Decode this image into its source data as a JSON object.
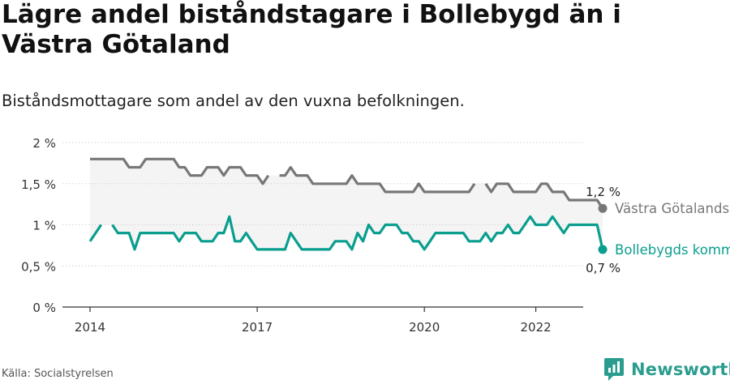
{
  "title": "Lägre andel biståndstagare i Bollebygd än i Västra Götaland",
  "subtitle": "Biståndsmottagare som andel av den vuxna befolkningen.",
  "source": "Källa: Socialstyrelsen",
  "brand": {
    "name": "Newsworthy",
    "icon": "newsworthy-logo-icon",
    "color": "#2a9d8f"
  },
  "chart_data": {
    "type": "line",
    "title": "",
    "xlabel": "",
    "ylabel": "",
    "ylim": [
      0,
      2
    ],
    "xlim": [
      2013.5,
      2022.6
    ],
    "x_ticks": [
      2014,
      2017,
      2020,
      2022
    ],
    "x_tick_labels": [
      "2014",
      "2017",
      "2020",
      "2022"
    ],
    "y_ticks": [
      0,
      0.5,
      1,
      1.5,
      2
    ],
    "y_tick_labels": [
      "0 %",
      "0,5 %",
      "1 %",
      "1,5 %",
      "2 %"
    ],
    "grid": "horizontal",
    "band_color": "#f4f4f4",
    "series": [
      {
        "name": "Västra Götalands län",
        "color": "#777777",
        "end_label": "1,2 %",
        "points": [
          [
            2014.0,
            1.8
          ],
          [
            2014.1,
            1.8
          ],
          [
            2014.2,
            1.8
          ],
          [
            2014.3,
            1.8
          ],
          [
            2014.4,
            1.8
          ],
          [
            2014.5,
            1.8
          ],
          [
            2014.6,
            1.8
          ],
          [
            2014.7,
            1.7
          ],
          [
            2014.8,
            1.7
          ],
          [
            2014.9,
            1.7
          ],
          [
            2015.0,
            1.8
          ],
          [
            2015.1,
            1.8
          ],
          [
            2015.2,
            1.8
          ],
          [
            2015.3,
            1.8
          ],
          [
            2015.4,
            1.8
          ],
          [
            2015.5,
            1.8
          ],
          [
            2015.6,
            1.7
          ],
          [
            2015.7,
            1.7
          ],
          [
            2015.8,
            1.6
          ],
          [
            2015.9,
            1.6
          ],
          [
            2016.0,
            1.6
          ],
          [
            2016.1,
            1.7
          ],
          [
            2016.2,
            1.7
          ],
          [
            2016.3,
            1.7
          ],
          [
            2016.4,
            1.6
          ],
          [
            2016.5,
            1.7
          ],
          [
            2016.6,
            1.7
          ],
          [
            2016.7,
            1.7
          ],
          [
            2016.8,
            1.6
          ],
          [
            2016.9,
            1.6
          ],
          [
            2017.0,
            1.6
          ],
          [
            2017.1,
            1.5
          ],
          [
            2017.2,
            1.6
          ],
          null,
          [
            2017.4,
            1.6
          ],
          [
            2017.5,
            1.6
          ],
          [
            2017.6,
            1.7
          ],
          [
            2017.7,
            1.6
          ],
          [
            2017.8,
            1.6
          ],
          [
            2017.9,
            1.6
          ],
          [
            2018.0,
            1.5
          ],
          [
            2018.1,
            1.5
          ],
          [
            2018.2,
            1.5
          ],
          [
            2018.3,
            1.5
          ],
          [
            2018.4,
            1.5
          ],
          [
            2018.5,
            1.5
          ],
          [
            2018.6,
            1.5
          ],
          [
            2018.7,
            1.6
          ],
          [
            2018.8,
            1.5
          ],
          [
            2018.9,
            1.5
          ],
          [
            2019.0,
            1.5
          ],
          [
            2019.1,
            1.5
          ],
          [
            2019.2,
            1.5
          ],
          [
            2019.3,
            1.4
          ],
          [
            2019.4,
            1.4
          ],
          [
            2019.5,
            1.4
          ],
          [
            2019.6,
            1.4
          ],
          [
            2019.7,
            1.4
          ],
          [
            2019.8,
            1.4
          ],
          [
            2019.9,
            1.5
          ],
          [
            2020.0,
            1.4
          ],
          [
            2020.1,
            1.4
          ],
          [
            2020.2,
            1.4
          ],
          [
            2020.3,
            1.4
          ],
          [
            2020.4,
            1.4
          ],
          [
            2020.5,
            1.4
          ],
          [
            2020.6,
            1.4
          ],
          [
            2020.7,
            1.4
          ],
          [
            2020.8,
            1.4
          ],
          [
            2020.9,
            1.5
          ],
          null,
          [
            2021.1,
            1.5
          ],
          [
            2021.2,
            1.4
          ],
          [
            2021.3,
            1.5
          ],
          [
            2021.4,
            1.5
          ],
          [
            2021.5,
            1.5
          ],
          [
            2021.6,
            1.4
          ],
          [
            2021.7,
            1.4
          ],
          [
            2021.8,
            1.4
          ],
          [
            2021.9,
            1.4
          ],
          [
            2022.0,
            1.4
          ],
          [
            2022.1,
            1.5
          ],
          [
            2022.2,
            1.5
          ],
          [
            2022.3,
            1.4
          ],
          [
            2022.4,
            1.4
          ],
          [
            2022.5,
            1.4
          ],
          [
            2022.6,
            1.3
          ],
          [
            2022.7,
            1.3
          ],
          [
            2022.8,
            1.3
          ],
          [
            2022.9,
            1.3
          ],
          [
            2023.0,
            1.3
          ],
          [
            2023.1,
            1.3
          ],
          [
            2023.2,
            1.2
          ]
        ]
      },
      {
        "name": "Bollebygds kommun",
        "color": "#0a9e8e",
        "end_label": "0,7 %",
        "points": [
          [
            2014.0,
            0.8
          ],
          [
            2014.1,
            0.9
          ],
          [
            2014.2,
            1.0
          ],
          null,
          [
            2014.4,
            1.0
          ],
          [
            2014.5,
            0.9
          ],
          [
            2014.6,
            0.9
          ],
          [
            2014.7,
            0.9
          ],
          [
            2014.8,
            0.7
          ],
          [
            2014.9,
            0.9
          ],
          [
            2015.0,
            0.9
          ],
          [
            2015.1,
            0.9
          ],
          [
            2015.2,
            0.9
          ],
          [
            2015.3,
            0.9
          ],
          [
            2015.4,
            0.9
          ],
          [
            2015.5,
            0.9
          ],
          [
            2015.6,
            0.8
          ],
          [
            2015.7,
            0.9
          ],
          [
            2015.8,
            0.9
          ],
          [
            2015.9,
            0.9
          ],
          [
            2016.0,
            0.8
          ],
          [
            2016.1,
            0.8
          ],
          [
            2016.2,
            0.8
          ],
          [
            2016.3,
            0.9
          ],
          [
            2016.4,
            0.9
          ],
          [
            2016.5,
            1.1
          ],
          [
            2016.6,
            0.8
          ],
          [
            2016.7,
            0.8
          ],
          [
            2016.8,
            0.9
          ],
          [
            2016.9,
            0.8
          ],
          [
            2017.0,
            0.7
          ],
          [
            2017.1,
            0.7
          ],
          [
            2017.2,
            0.7
          ],
          [
            2017.3,
            0.7
          ],
          [
            2017.4,
            0.7
          ],
          [
            2017.5,
            0.7
          ],
          [
            2017.6,
            0.9
          ],
          [
            2017.7,
            0.8
          ],
          [
            2017.8,
            0.7
          ],
          [
            2017.9,
            0.7
          ],
          [
            2018.0,
            0.7
          ],
          [
            2018.1,
            0.7
          ],
          [
            2018.2,
            0.7
          ],
          [
            2018.3,
            0.7
          ],
          [
            2018.4,
            0.8
          ],
          [
            2018.5,
            0.8
          ],
          [
            2018.6,
            0.8
          ],
          [
            2018.7,
            0.7
          ],
          [
            2018.8,
            0.9
          ],
          [
            2018.9,
            0.8
          ],
          [
            2019.0,
            1.0
          ],
          [
            2019.1,
            0.9
          ],
          [
            2019.2,
            0.9
          ],
          [
            2019.3,
            1.0
          ],
          [
            2019.4,
            1.0
          ],
          [
            2019.5,
            1.0
          ],
          [
            2019.6,
            0.9
          ],
          [
            2019.7,
            0.9
          ],
          [
            2019.8,
            0.8
          ],
          [
            2019.9,
            0.8
          ],
          [
            2020.0,
            0.7
          ],
          [
            2020.1,
            0.8
          ],
          [
            2020.2,
            0.9
          ],
          [
            2020.3,
            0.9
          ],
          [
            2020.4,
            0.9
          ],
          [
            2020.5,
            0.9
          ],
          [
            2020.6,
            0.9
          ],
          [
            2020.7,
            0.9
          ],
          [
            2020.8,
            0.8
          ],
          [
            2020.9,
            0.8
          ],
          [
            2021.0,
            0.8
          ],
          [
            2021.1,
            0.9
          ],
          [
            2021.2,
            0.8
          ],
          [
            2021.3,
            0.9
          ],
          [
            2021.4,
            0.9
          ],
          [
            2021.5,
            1.0
          ],
          [
            2021.6,
            0.9
          ],
          [
            2021.7,
            0.9
          ],
          [
            2021.8,
            1.0
          ],
          [
            2021.9,
            1.1
          ],
          [
            2022.0,
            1.0
          ],
          [
            2022.1,
            1.0
          ],
          [
            2022.2,
            1.0
          ],
          [
            2022.3,
            1.1
          ],
          [
            2022.4,
            1.0
          ],
          [
            2022.5,
            0.9
          ],
          [
            2022.6,
            1.0
          ],
          [
            2022.7,
            1.0
          ],
          [
            2022.8,
            1.0
          ],
          [
            2022.9,
            1.0
          ],
          [
            2023.0,
            1.0
          ],
          [
            2023.1,
            1.0
          ],
          [
            2023.2,
            0.7
          ]
        ]
      }
    ]
  }
}
